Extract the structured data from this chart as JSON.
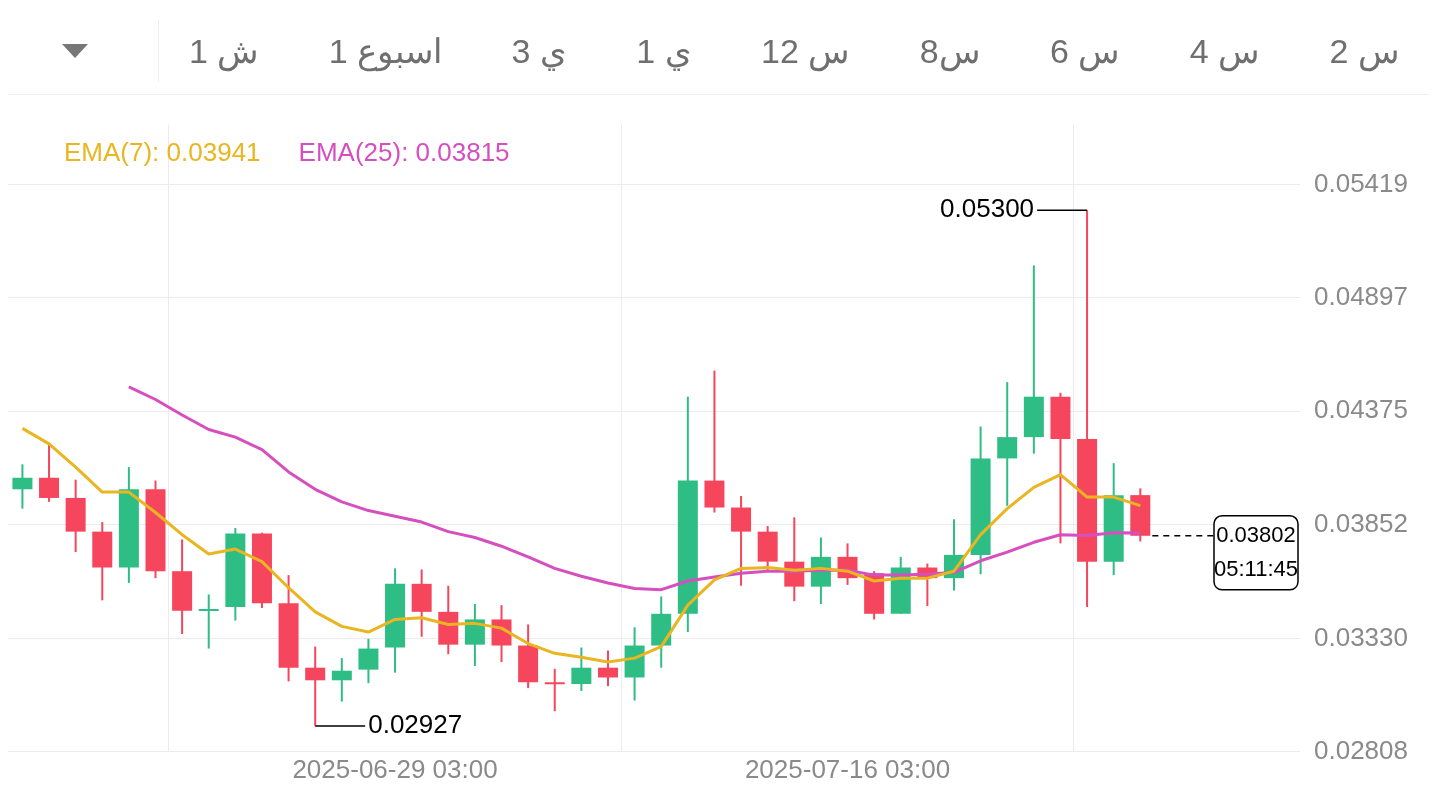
{
  "chart_data": {
    "type": "candlestick",
    "x": [
      "2025-06-15T03:00",
      "2025-06-16T03:00",
      "2025-06-17T03:00",
      "2025-06-18T03:00",
      "2025-06-19T03:00",
      "2025-06-20T03:00",
      "2025-06-21T03:00",
      "2025-06-22T03:00",
      "2025-06-23T03:00",
      "2025-06-24T03:00",
      "2025-06-25T03:00",
      "2025-06-26T03:00",
      "2025-06-27T03:00",
      "2025-06-28T03:00",
      "2025-06-29T03:00",
      "2025-06-30T03:00",
      "2025-07-01T03:00",
      "2025-07-02T03:00",
      "2025-07-03T03:00",
      "2025-07-04T03:00",
      "2025-07-05T03:00",
      "2025-07-06T03:00",
      "2025-07-07T03:00",
      "2025-07-08T03:00",
      "2025-07-09T03:00",
      "2025-07-10T03:00",
      "2025-07-11T03:00",
      "2025-07-12T03:00",
      "2025-07-13T03:00",
      "2025-07-14T03:00",
      "2025-07-15T03:00",
      "2025-07-16T03:00",
      "2025-07-17T03:00",
      "2025-07-18T03:00",
      "2025-07-19T03:00",
      "2025-07-20T03:00",
      "2025-07-21T03:00",
      "2025-07-22T03:00",
      "2025-07-23T03:00",
      "2025-07-24T03:00",
      "2025-07-25T03:00",
      "2025-07-26T03:00",
      "2025-07-27T03:00"
    ],
    "ohlc": [
      [
        0.04016,
        0.04131,
        0.03927,
        0.04069
      ],
      [
        0.04069,
        0.04229,
        0.03958,
        0.03976
      ],
      [
        0.03976,
        0.0406,
        0.03727,
        0.03821
      ],
      [
        0.03821,
        0.03865,
        0.03505,
        0.03656
      ],
      [
        0.03656,
        0.04118,
        0.03585,
        0.04016
      ],
      [
        0.04016,
        0.04056,
        0.03607,
        0.03639
      ],
      [
        0.03639,
        0.03785,
        0.0335,
        0.03457
      ],
      [
        0.03457,
        0.03532,
        0.03283,
        0.03465
      ],
      [
        0.03474,
        0.03838,
        0.03412,
        0.03812
      ],
      [
        0.03812,
        0.03816,
        0.0347,
        0.03492
      ],
      [
        0.03492,
        0.03621,
        0.03132,
        0.03195
      ],
      [
        0.03195,
        0.03292,
        0.02927,
        0.03137
      ],
      [
        0.03137,
        0.03239,
        0.03039,
        0.03181
      ],
      [
        0.03186,
        0.03328,
        0.03124,
        0.03283
      ],
      [
        0.03288,
        0.03652,
        0.03172,
        0.03581
      ],
      [
        0.03581,
        0.03647,
        0.03337,
        0.03452
      ],
      [
        0.03452,
        0.03572,
        0.03257,
        0.03301
      ],
      [
        0.03301,
        0.03488,
        0.03203,
        0.03417
      ],
      [
        0.03417,
        0.03483,
        0.03221,
        0.03297
      ],
      [
        0.03297,
        0.03394,
        0.03101,
        0.03128
      ],
      [
        0.03128,
        0.0319,
        0.02995,
        0.0312
      ],
      [
        0.0312,
        0.03288,
        0.03088,
        0.03195
      ],
      [
        0.03195,
        0.03274,
        0.0311,
        0.0315
      ],
      [
        0.0315,
        0.03381,
        0.03044,
        0.03297
      ],
      [
        0.03297,
        0.03523,
        0.03195,
        0.03443
      ],
      [
        0.03443,
        0.04442,
        0.03359,
        0.04056
      ],
      [
        0.04056,
        0.04562,
        0.03909,
        0.03932
      ],
      [
        0.03932,
        0.03985,
        0.03572,
        0.03821
      ],
      [
        0.03821,
        0.03847,
        0.03639,
        0.03683
      ],
      [
        0.03683,
        0.03887,
        0.03501,
        0.03568
      ],
      [
        0.03568,
        0.03794,
        0.03488,
        0.03705
      ],
      [
        0.03705,
        0.03767,
        0.03576,
        0.03607
      ],
      [
        0.0363,
        0.03639,
        0.03417,
        0.03443
      ],
      [
        0.03443,
        0.03705,
        0.03443,
        0.03656
      ],
      [
        0.03656,
        0.03674,
        0.03479,
        0.03607
      ],
      [
        0.03607,
        0.03878,
        0.0355,
        0.03714
      ],
      [
        0.03714,
        0.04305,
        0.03625,
        0.04158
      ],
      [
        0.04158,
        0.04509,
        0.0394,
        0.04256
      ],
      [
        0.04256,
        0.05046,
        0.0418,
        0.04442
      ],
      [
        0.04442,
        0.0446,
        0.03767,
        0.04247
      ],
      [
        0.04247,
        0.053,
        0.03474,
        0.03683
      ],
      [
        0.03683,
        0.04136,
        0.03621,
        0.03989
      ],
      [
        0.03989,
        0.0402,
        0.03776,
        0.03802
      ]
    ],
    "colors": [
      "#2ebd85",
      "#f6465d",
      "#f6465d",
      "#f6465d",
      "#2ebd85",
      "#f6465d",
      "#f6465d",
      "#2ebd85",
      "#2ebd85",
      "#f6465d",
      "#f6465d",
      "#f6465d",
      "#2ebd85",
      "#2ebd85",
      "#2ebd85",
      "#f6465d",
      "#f6465d",
      "#2ebd85",
      "#f6465d",
      "#f6465d",
      "#f6465d",
      "#2ebd85",
      "#f6465d",
      "#2ebd85",
      "#2ebd85",
      "#2ebd85",
      "#f6465d",
      "#f6465d",
      "#f6465d",
      "#f6465d",
      "#2ebd85",
      "#f6465d",
      "#f6465d",
      "#2ebd85",
      "#f6465d",
      "#2ebd85",
      "#2ebd85",
      "#2ebd85",
      "#2ebd85",
      "#f6465d",
      "#f6465d",
      "#2ebd85",
      "#f6465d"
    ],
    "series": [
      {
        "name": "EMA(7): 0.03941",
        "type": "line",
        "color": "#e9b520",
        "values": [
          0.04296,
          0.04225,
          0.04118,
          0.04003,
          0.04003,
          0.03909,
          0.03807,
          0.03718,
          0.03741,
          0.03683,
          0.03563,
          0.03452,
          0.03385,
          0.03359,
          0.03417,
          0.03425,
          0.03394,
          0.03399,
          0.03377,
          0.03306,
          0.03261,
          0.03243,
          0.03221,
          0.03239,
          0.03292,
          0.03483,
          0.03599,
          0.03652,
          0.03656,
          0.03643,
          0.03652,
          0.03639,
          0.03594,
          0.03607,
          0.03607,
          0.03639,
          0.03807,
          0.03927,
          0.04025,
          0.04083,
          0.0398,
          0.0398,
          0.03941
        ]
      },
      {
        "name": "EMA(25): 0.03815",
        "type": "line",
        "color": "#d64fbf",
        "values": [
          null,
          null,
          null,
          null,
          0.04487,
          0.04429,
          0.04358,
          0.04291,
          0.04256,
          0.04198,
          0.04096,
          0.04016,
          0.03958,
          0.03918,
          0.03892,
          0.03865,
          0.03821,
          0.03794,
          0.03754,
          0.03705,
          0.03652,
          0.03616,
          0.03585,
          0.03559,
          0.03554,
          0.03594,
          0.03612,
          0.0363,
          0.03639,
          0.03639,
          0.03643,
          0.03643,
          0.03621,
          0.03621,
          0.03625,
          0.03634,
          0.03687,
          0.03727,
          0.03772,
          0.03807,
          0.03803,
          0.03816,
          0.03815
        ]
      }
    ],
    "xlim": [
      "2025-06-14T14:00",
      "2025-08-02T03:00"
    ],
    "xticks": [
      {
        "value": "2025-06-29T03:00",
        "label": "2025-06-29 03:00"
      },
      {
        "value": "2025-07-16T03:00",
        "label": "2025-07-16 03:00"
      }
    ],
    "ylim": [
      0.02808,
      0.05694
    ],
    "yticks": [
      0.02808,
      {
        "value": 0.0333,
        "label": "0.03330"
      },
      0.03852,
      0.04375,
      0.04897,
      0.05419
    ],
    "grid": true,
    "legend": "top left",
    "ref_lines": [
      {
        "axis": "y",
        "value": 0.03802,
        "label": "0.03802",
        "color": "#000000",
        "line_style": "dashed"
      }
    ],
    "annotations": [
      "1 ش",
      "1 اسبوع",
      "3 ي",
      "1 ي",
      "12 س",
      "8س",
      "6 س",
      "4 س",
      "2 س",
      {
        "text": "0.05300",
        "x": "2025-07-25T03:00",
        "y": 0.053
      },
      {
        "text": "0.02927",
        "x": "2025-06-26T03:00",
        "y": 0.02927
      },
      "05:11:45"
    ]
  }
}
